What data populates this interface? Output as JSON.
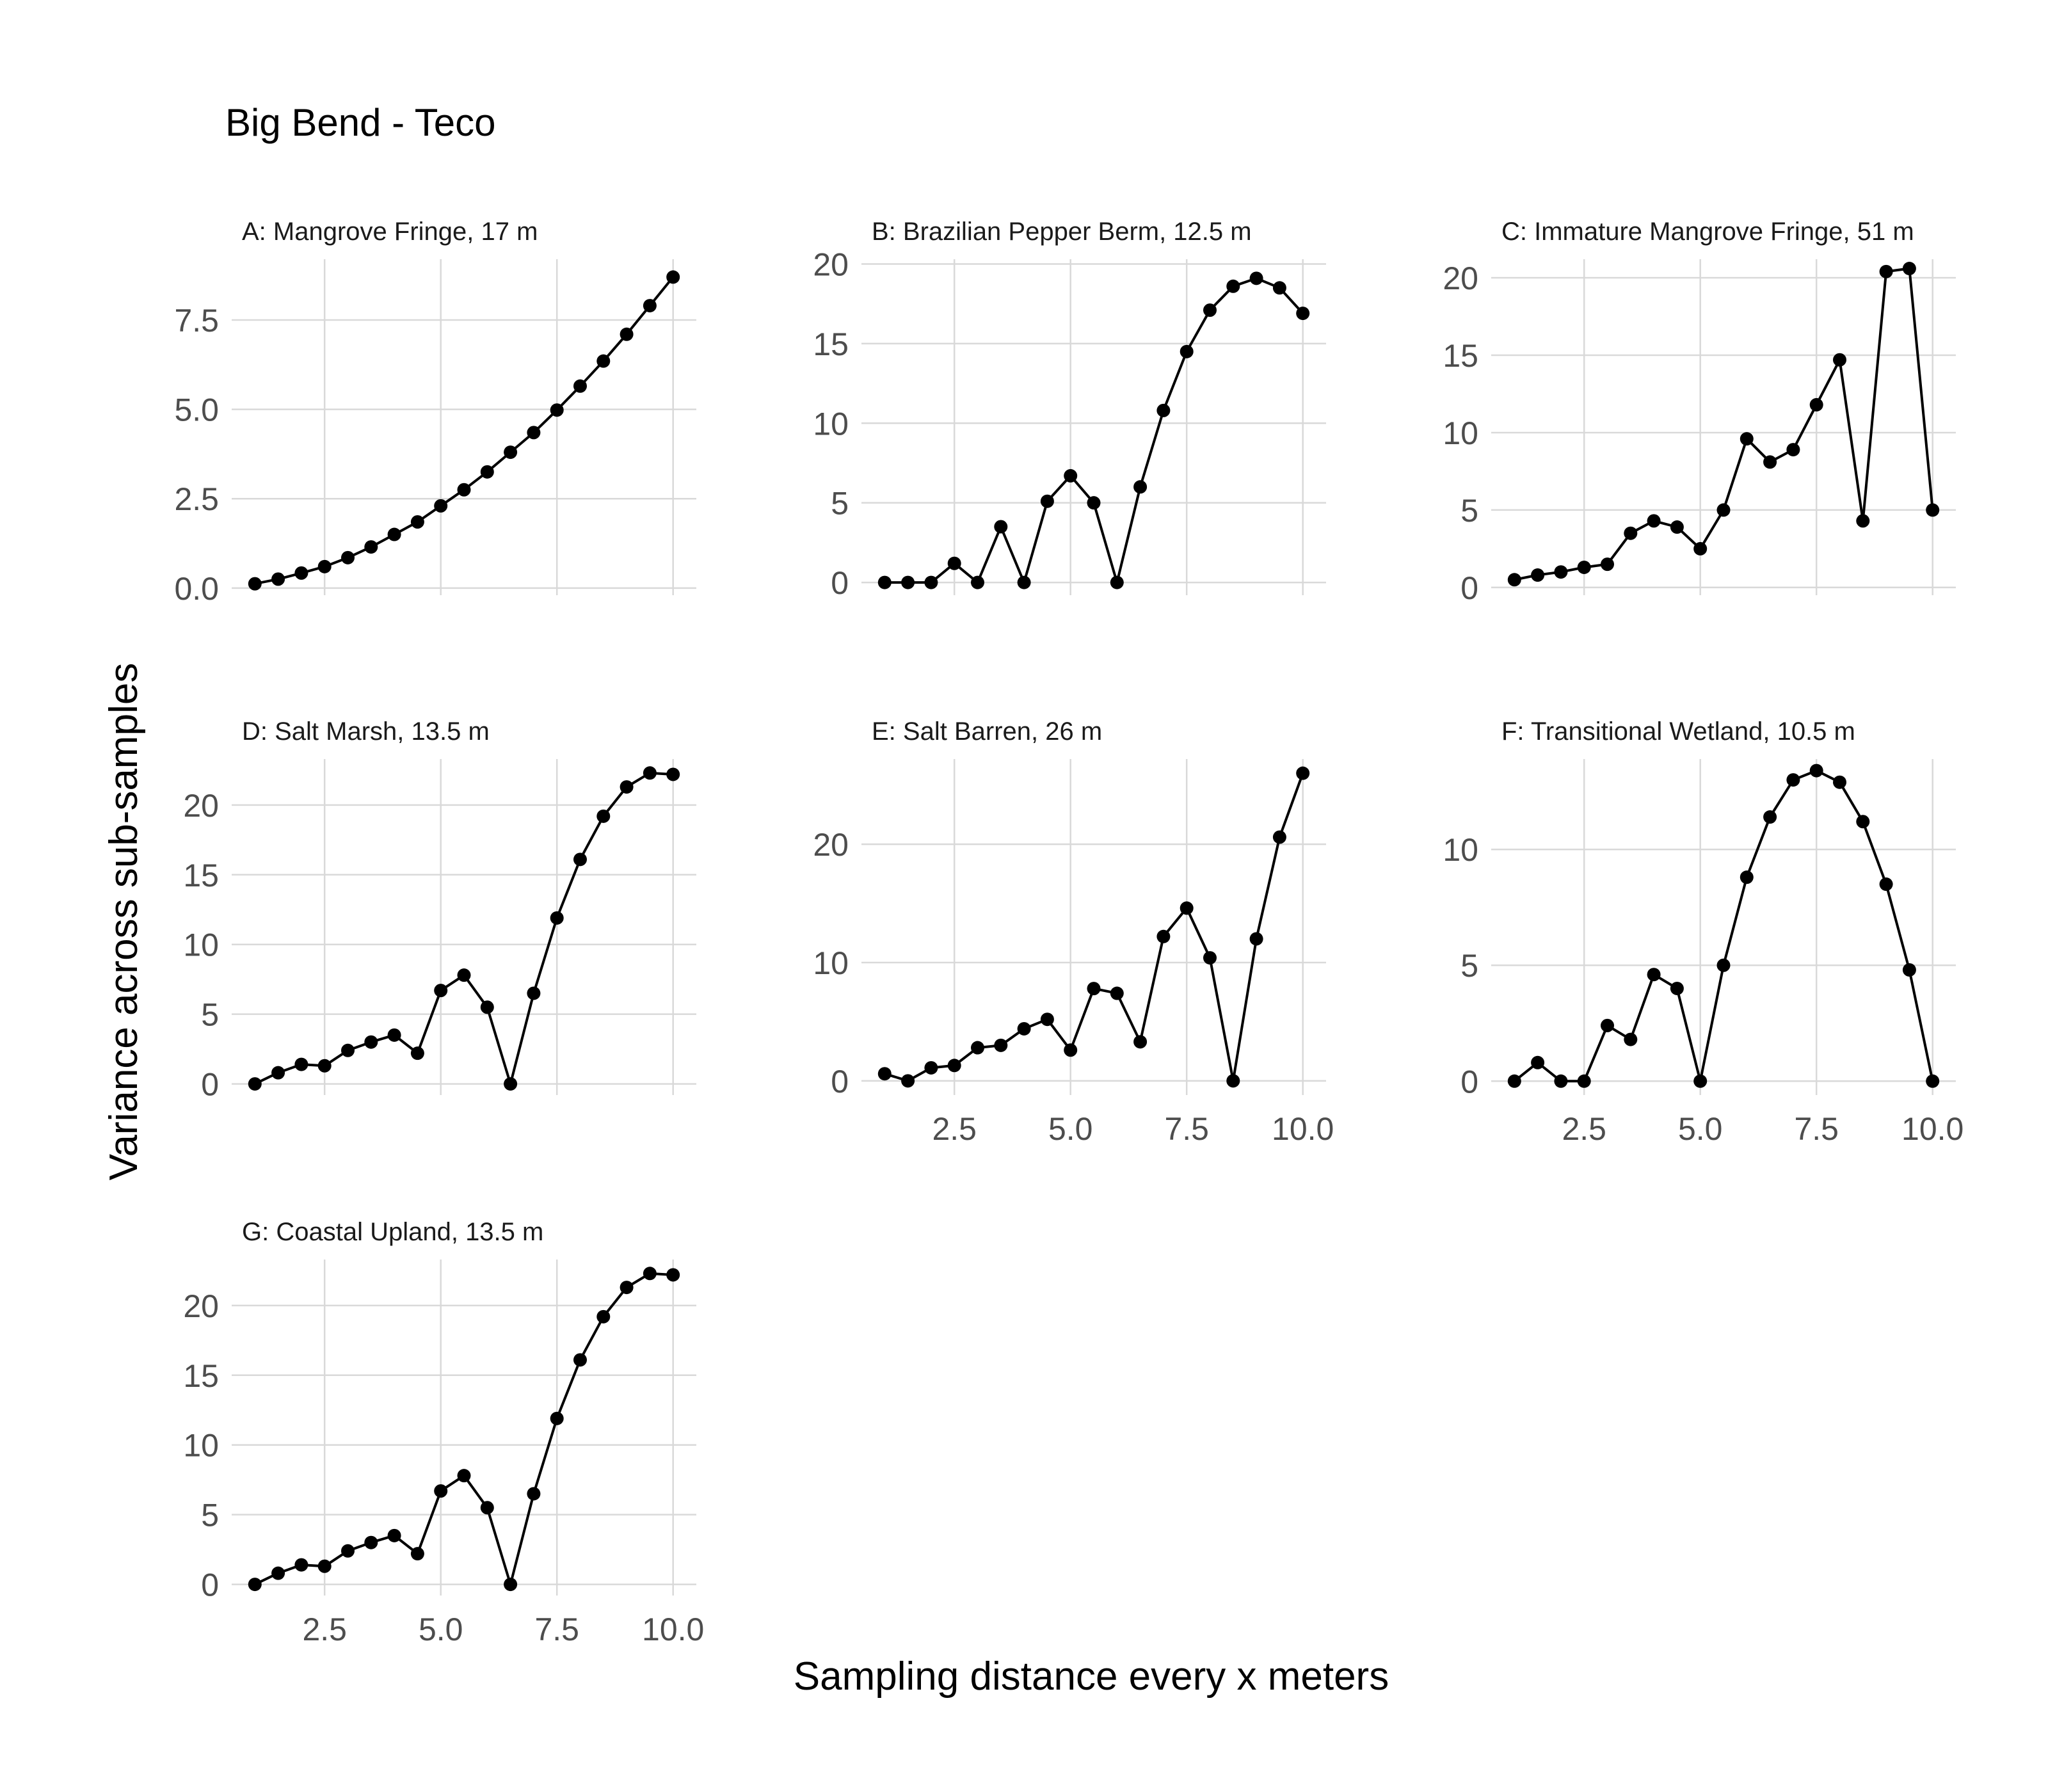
{
  "figure_title": "Big Bend - Teco",
  "x_axis_label": "Sampling distance every x meters",
  "y_axis_label": "Variance across sub-samples",
  "colors": {
    "series": "#000000",
    "grid": "#d9d9d9",
    "tick_text": "#4d4d4d"
  },
  "chart_data": [
    {
      "type": "line",
      "title": "A: Mangrove Fringe, 17 m",
      "x": [
        1,
        1.5,
        2,
        2.5,
        3,
        3.5,
        4,
        4.5,
        5,
        5.5,
        6,
        6.5,
        7,
        7.5,
        8,
        8.5,
        9,
        9.5,
        10
      ],
      "values": [
        0.12,
        0.25,
        0.42,
        0.6,
        0.85,
        1.15,
        1.5,
        1.85,
        2.3,
        2.75,
        3.25,
        3.8,
        4.35,
        4.98,
        5.65,
        6.35,
        7.1,
        7.9,
        8.7
      ],
      "xlim": [
        0.5,
        10.5
      ],
      "ylim": [
        -0.2,
        9.2
      ],
      "yticks": [
        0,
        2.5,
        5,
        7.5
      ],
      "ytick_labels": [
        "0.0",
        "2.5",
        "5.0",
        "7.5"
      ],
      "xticks": [
        2.5,
        5,
        7.5,
        10
      ],
      "xtick_labels": [],
      "grid": true
    },
    {
      "type": "line",
      "title": "B: Brazilian Pepper Berm, 12.5 m",
      "x": [
        1,
        1.5,
        2,
        2.5,
        3,
        3.5,
        4,
        4.5,
        5,
        5.5,
        6,
        6.5,
        7,
        7.5,
        8,
        8.5,
        9,
        9.5,
        10
      ],
      "values": [
        0,
        0,
        0,
        1.2,
        0,
        3.5,
        0,
        5.1,
        6.7,
        5,
        0,
        6,
        10.8,
        14.5,
        17.1,
        18.6,
        19.1,
        18.5,
        16.9
      ],
      "xlim": [
        0.5,
        10.5
      ],
      "ylim": [
        -0.8,
        20.3
      ],
      "yticks": [
        0,
        5,
        10,
        15,
        20
      ],
      "ytick_labels": [
        "0",
        "5",
        "10",
        "15",
        "20"
      ],
      "xticks": [
        2.5,
        5,
        7.5,
        10
      ],
      "xtick_labels": [],
      "grid": true
    },
    {
      "type": "line",
      "title": "C: Immature Mangrove Fringe, 51 m",
      "x": [
        1,
        1.5,
        2,
        2.5,
        3,
        3.5,
        4,
        4.5,
        5,
        5.5,
        6,
        6.5,
        7,
        7.5,
        8,
        8.5,
        9,
        9.5,
        10
      ],
      "values": [
        0.5,
        0.8,
        1.0,
        1.3,
        1.5,
        3.5,
        4.3,
        3.9,
        2.5,
        5,
        9.6,
        8.1,
        8.9,
        11.8,
        14.7,
        4.3,
        20.4,
        20.6,
        5
      ],
      "xlim": [
        0.5,
        10.5
      ],
      "ylim": [
        -0.5,
        21.2
      ],
      "yticks": [
        0,
        5,
        10,
        15,
        20
      ],
      "ytick_labels": [
        "0",
        "5",
        "10",
        "15",
        "20"
      ],
      "xticks": [
        2.5,
        5,
        7.5,
        10
      ],
      "xtick_labels": [],
      "grid": true
    },
    {
      "type": "line",
      "title": "D: Salt Marsh, 13.5 m",
      "x": [
        1,
        1.5,
        2,
        2.5,
        3,
        3.5,
        4,
        4.5,
        5,
        5.5,
        6,
        6.5,
        7,
        7.5,
        8,
        8.5,
        9,
        9.5,
        10
      ],
      "values": [
        0,
        0.8,
        1.4,
        1.3,
        2.4,
        3,
        3.5,
        2.2,
        6.7,
        7.8,
        5.5,
        0,
        6.5,
        11.9,
        16.1,
        19.2,
        21.3,
        22.3,
        22.2
      ],
      "xlim": [
        0.5,
        10.5
      ],
      "ylim": [
        -0.8,
        23.3
      ],
      "yticks": [
        0,
        5,
        10,
        15,
        20
      ],
      "ytick_labels": [
        "0",
        "5",
        "10",
        "15",
        "20"
      ],
      "xticks": [
        2.5,
        5,
        7.5,
        10
      ],
      "xtick_labels": [],
      "grid": true
    },
    {
      "type": "line",
      "title": "E: Salt Barren, 26 m",
      "x": [
        1,
        1.5,
        2,
        2.5,
        3,
        3.5,
        4,
        4.5,
        5,
        5.5,
        6,
        6.5,
        7,
        7.5,
        8,
        8.5,
        9,
        9.5,
        10
      ],
      "values": [
        0.6,
        0,
        1.1,
        1.3,
        2.8,
        3,
        4.4,
        5.2,
        2.6,
        7.8,
        7.4,
        3.3,
        12.2,
        14.6,
        10.4,
        0,
        12,
        20.6,
        26
      ],
      "xlim": [
        0.5,
        10.5
      ],
      "ylim": [
        -1.2,
        27.2
      ],
      "yticks": [
        0,
        10,
        20
      ],
      "ytick_labels": [
        "0",
        "10",
        "20"
      ],
      "xticks": [
        2.5,
        5,
        7.5,
        10
      ],
      "xtick_labels": [
        "2.5",
        "5.0",
        "7.5",
        "10.0"
      ],
      "grid": true
    },
    {
      "type": "line",
      "title": "F: Transitional Wetland, 10.5 m",
      "x": [
        1,
        1.5,
        2,
        2.5,
        3,
        3.5,
        4,
        4.5,
        5,
        5.5,
        6,
        6.5,
        7,
        7.5,
        8,
        8.5,
        9,
        9.5,
        10
      ],
      "values": [
        0,
        0.8,
        0,
        0,
        2.4,
        1.8,
        4.6,
        4,
        0,
        5,
        8.8,
        11.4,
        13,
        13.4,
        12.9,
        11.2,
        8.5,
        4.8,
        0
      ],
      "xlim": [
        0.5,
        10.5
      ],
      "ylim": [
        -0.6,
        13.9
      ],
      "yticks": [
        0,
        5,
        10
      ],
      "ytick_labels": [
        "0",
        "5",
        "10"
      ],
      "xticks": [
        2.5,
        5,
        7.5,
        10
      ],
      "xtick_labels": [
        "2.5",
        "5.0",
        "7.5",
        "10.0"
      ],
      "grid": true
    },
    {
      "type": "line",
      "title": "G: Coastal Upland, 13.5 m",
      "x": [
        1,
        1.5,
        2,
        2.5,
        3,
        3.5,
        4,
        4.5,
        5,
        5.5,
        6,
        6.5,
        7,
        7.5,
        8,
        8.5,
        9,
        9.5,
        10
      ],
      "values": [
        0,
        0.8,
        1.4,
        1.3,
        2.4,
        3,
        3.5,
        2.2,
        6.7,
        7.8,
        5.5,
        0,
        6.5,
        11.9,
        16.1,
        19.2,
        21.3,
        22.3,
        22.2
      ],
      "xlim": [
        0.5,
        10.5
      ],
      "ylim": [
        -0.8,
        23.3
      ],
      "yticks": [
        0,
        5,
        10,
        15,
        20
      ],
      "ytick_labels": [
        "0",
        "5",
        "10",
        "15",
        "20"
      ],
      "xticks": [
        2.5,
        5,
        7.5,
        10
      ],
      "xtick_labels": [
        "2.5",
        "5.0",
        "7.5",
        "10.0"
      ],
      "grid": true
    }
  ]
}
